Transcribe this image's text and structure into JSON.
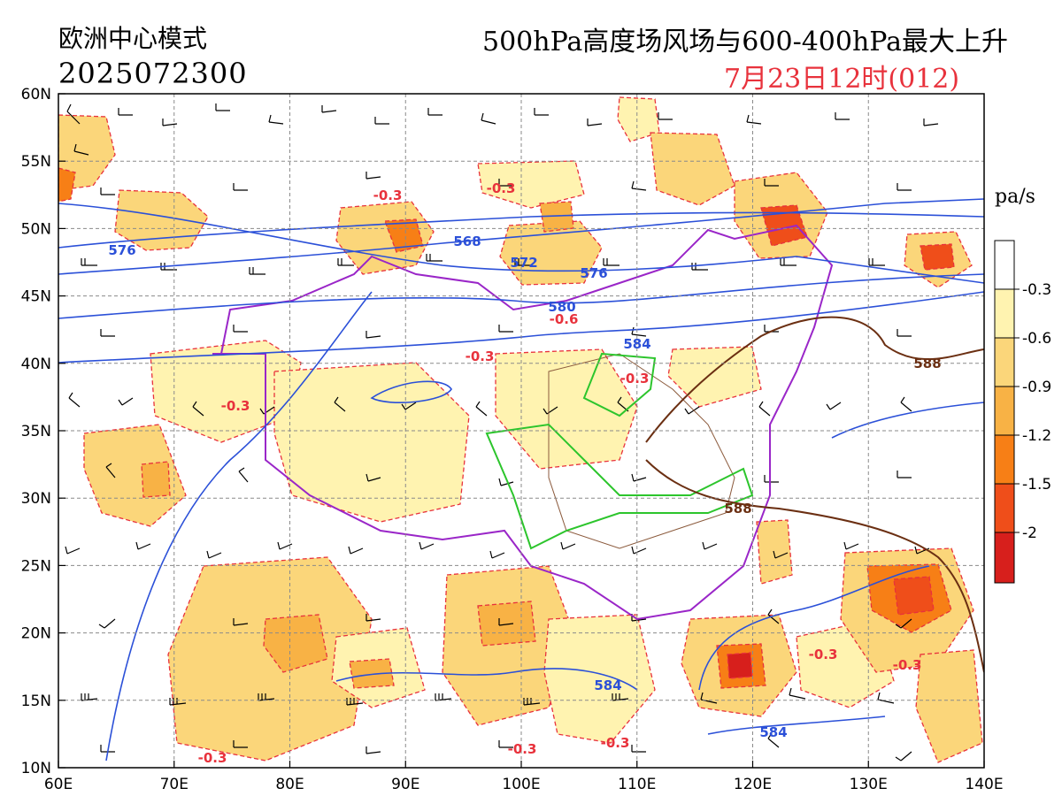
{
  "header": {
    "model": "欧洲中心模式",
    "init_time": "2025072300",
    "title": "500hPa高度场风场与600-400hPa最大上升",
    "valid_time": "7月23日12时(012)",
    "unit": "pa/s"
  },
  "axes": {
    "lon_labels": [
      "60E",
      "70E",
      "80E",
      "90E",
      "100E",
      "110E",
      "120E",
      "130E",
      "140E"
    ],
    "lat_labels": [
      "10N",
      "15N",
      "20N",
      "25N",
      "30N",
      "35N",
      "40N",
      "45N",
      "50N",
      "55N",
      "60N"
    ],
    "lon_range": [
      60,
      140
    ],
    "lat_range": [
      10,
      60
    ]
  },
  "colorbar": {
    "labels": [
      "-0.3",
      "-0.6",
      "-0.9",
      "-1.2",
      "-1.5",
      "-2"
    ],
    "colors": [
      "#ffffff",
      "#fff3b0",
      "#fbd67a",
      "#f8b245",
      "#f77f16",
      "#ef4e1a",
      "#d71f1c"
    ]
  },
  "contour_labels": {
    "height_blue": [
      "576",
      "568",
      "572",
      "576",
      "580",
      "584",
      "584",
      "584"
    ],
    "height_brown": [
      "588",
      "588"
    ],
    "omega_red": [
      "-0.3",
      "-0.3",
      "-0.3",
      "-0.3",
      "-0.6",
      "-0.3",
      "-0.3",
      "-0.3",
      "-0.3",
      "-0.3",
      "-0.3"
    ]
  },
  "colors": {
    "height_contour": "#2b50d8",
    "height_588": "#6b2f12",
    "country_border": "#9a26c8",
    "province_border": "#8b5a3c",
    "river_basin": "#2cc52c",
    "omega_dash": "#e8323c"
  }
}
